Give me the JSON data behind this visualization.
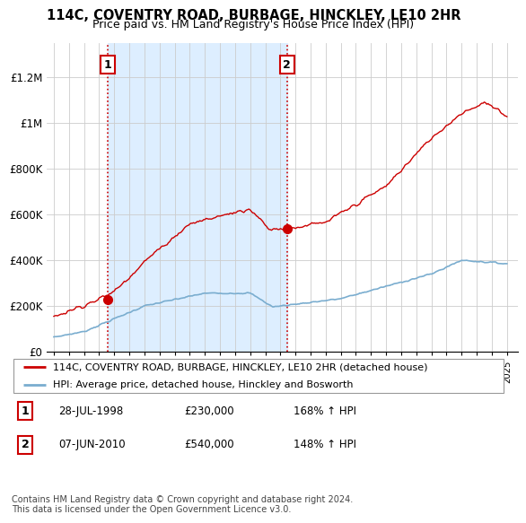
{
  "title": "114C, COVENTRY ROAD, BURBAGE, HINCKLEY, LE10 2HR",
  "subtitle": "Price paid vs. HM Land Registry's House Price Index (HPI)",
  "legend_label_red": "114C, COVENTRY ROAD, BURBAGE, HINCKLEY, LE10 2HR (detached house)",
  "legend_label_blue": "HPI: Average price, detached house, Hinckley and Bosworth",
  "annotation1_date": "28-JUL-1998",
  "annotation1_price": "£230,000",
  "annotation1_hpi": "168% ↑ HPI",
  "annotation2_date": "07-JUN-2010",
  "annotation2_price": "£540,000",
  "annotation2_hpi": "148% ↑ HPI",
  "footer": "Contains HM Land Registry data © Crown copyright and database right 2024.\nThis data is licensed under the Open Government Licence v3.0.",
  "red_color": "#cc0000",
  "blue_color": "#7aadcf",
  "shade_color": "#ddeeff",
  "annotation_box_color": "#cc0000",
  "background_color": "#ffffff",
  "grid_color": "#cccccc",
  "title_fontsize": 10.5,
  "subtitle_fontsize": 9,
  "ytick_labels": [
    "£0",
    "£200K",
    "£400K",
    "£600K",
    "£800K",
    "£1M",
    "£1.2M"
  ],
  "ytick_values": [
    0,
    200000,
    400000,
    600000,
    800000,
    1000000,
    1200000
  ],
  "ylim": [
    0,
    1350000
  ],
  "xlim_start": 1994.5,
  "xlim_end": 2025.7,
  "sale1_x": 1998.57,
  "sale1_y": 230000,
  "sale2_x": 2010.44,
  "sale2_y": 540000
}
